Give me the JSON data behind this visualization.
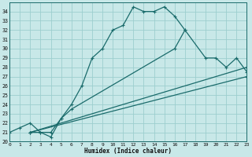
{
  "xlabel": "Humidex (Indice chaleur)",
  "background_color": "#c8e8e8",
  "grid_color": "#9ccece",
  "line_color": "#1a6b6b",
  "xlim": [
    0,
    23
  ],
  "ylim": [
    20,
    35
  ],
  "xticks": [
    0,
    1,
    2,
    3,
    4,
    5,
    6,
    7,
    8,
    9,
    10,
    11,
    12,
    13,
    14,
    15,
    16,
    17,
    18,
    19,
    20,
    21,
    22,
    23
  ],
  "yticks": [
    20,
    21,
    22,
    23,
    24,
    25,
    26,
    27,
    28,
    29,
    30,
    31,
    32,
    33,
    34
  ],
  "curve1_x": [
    0,
    1,
    2,
    3,
    4,
    5,
    6,
    7,
    8,
    9,
    10,
    11,
    12,
    13,
    14,
    15,
    16,
    17
  ],
  "curve1_y": [
    21,
    21.5,
    22,
    21,
    20.5,
    22.5,
    24,
    26,
    29,
    30,
    32,
    32.5,
    34.5,
    34,
    34,
    34.5,
    33.5,
    32
  ],
  "curve2_x": [
    2,
    3,
    4,
    5,
    6,
    16,
    17,
    19,
    20,
    21,
    22,
    23
  ],
  "curve2_y": [
    21,
    21,
    21,
    22.5,
    23.5,
    30,
    32,
    29,
    29,
    28,
    29,
    27.5
  ],
  "curve3_x": [
    2,
    23
  ],
  "curve3_y": [
    21,
    28
  ],
  "curve4_x": [
    2,
    23
  ],
  "curve4_y": [
    21,
    27
  ]
}
